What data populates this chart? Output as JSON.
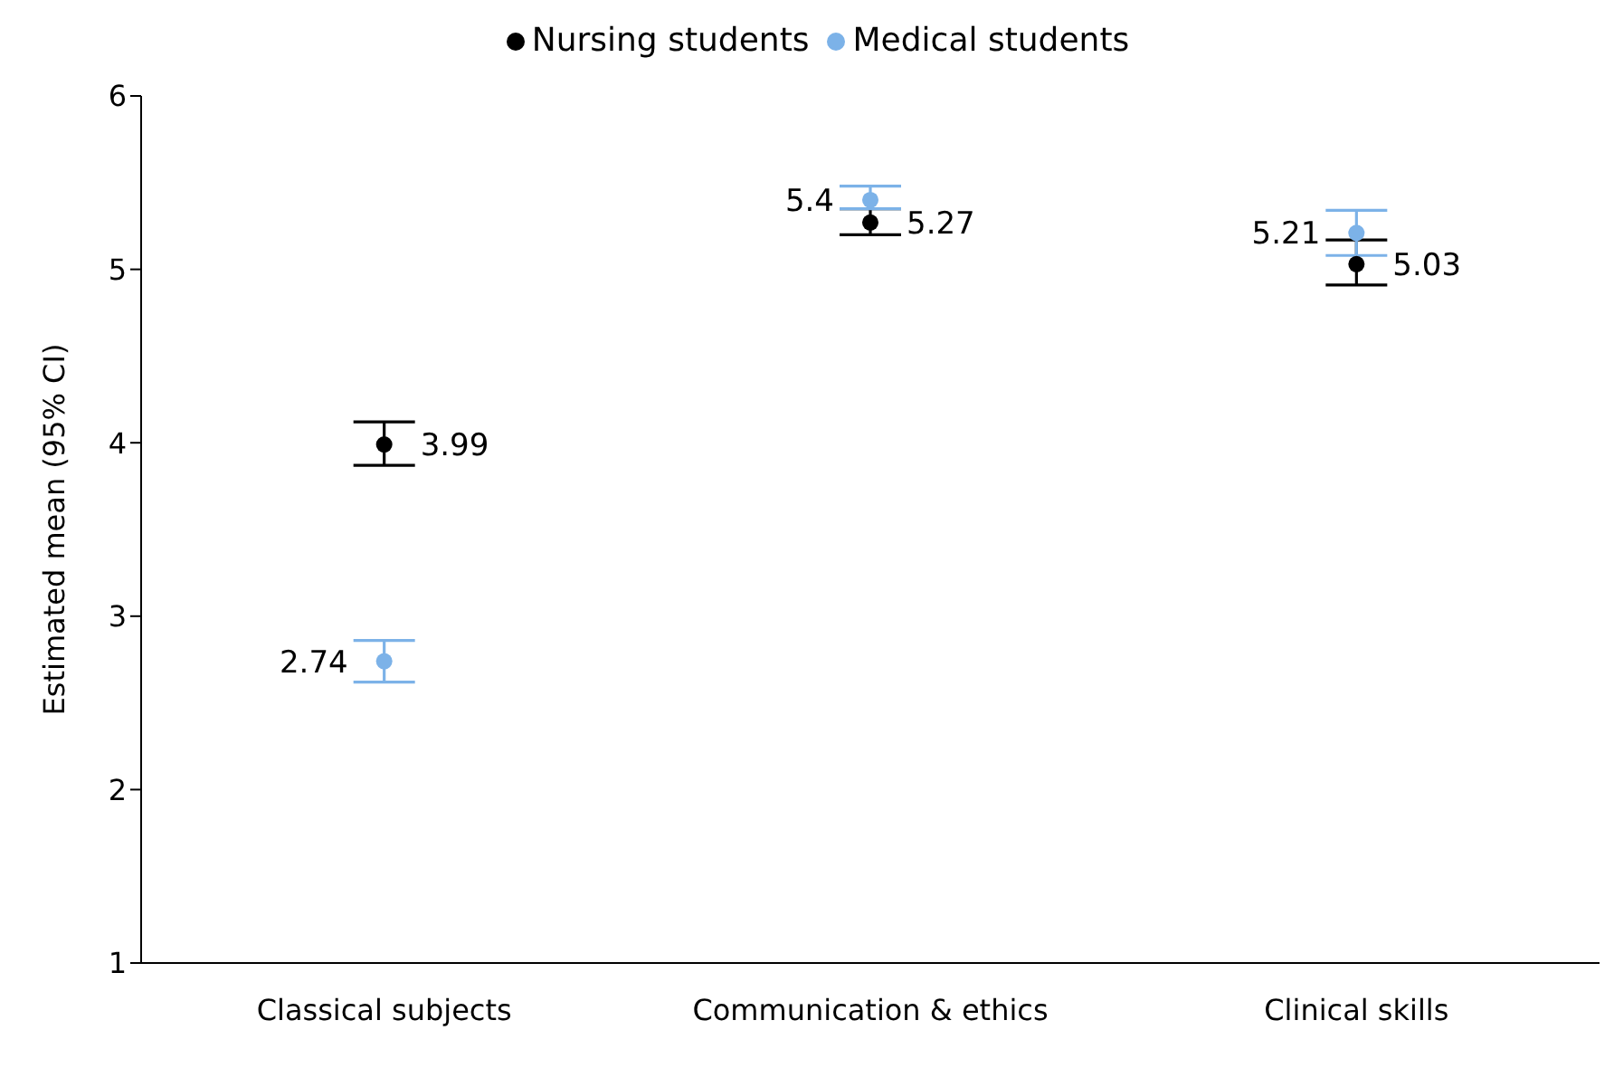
{
  "chart_data": {
    "type": "scatter",
    "ylabel": "Estimated mean (95% CI)",
    "categories": [
      "Classical subjects",
      "Communication & ethics",
      "Clinical skills"
    ],
    "series": [
      {
        "name": "Nursing students",
        "color": "#000000",
        "values": [
          3.99,
          5.27,
          5.03
        ],
        "errors": [
          [
            3.87,
            4.12
          ],
          [
            5.2,
            5.35
          ],
          [
            4.91,
            5.17
          ]
        ]
      },
      {
        "name": "Medical students",
        "color": "#7cb2e8",
        "values": [
          2.74,
          5.4,
          5.21
        ],
        "errors": [
          [
            2.62,
            2.86
          ],
          [
            5.35,
            5.48
          ],
          [
            5.08,
            5.34
          ]
        ]
      }
    ],
    "ylim": [
      1,
      6
    ],
    "yticks": [
      1,
      2,
      3,
      4,
      5,
      6
    ],
    "grid": false,
    "legend": "top",
    "marker": "circle",
    "data_labels": true
  }
}
